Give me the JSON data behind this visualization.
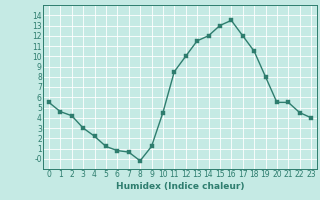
{
  "x": [
    0,
    1,
    2,
    3,
    4,
    5,
    6,
    7,
    8,
    9,
    10,
    11,
    12,
    13,
    14,
    15,
    16,
    17,
    18,
    19,
    20,
    21,
    22,
    23
  ],
  "y": [
    5.5,
    4.6,
    4.2,
    3.0,
    2.2,
    1.2,
    0.8,
    0.65,
    -0.2,
    1.2,
    4.5,
    8.5,
    10.0,
    11.5,
    12.0,
    13.0,
    13.5,
    12.0,
    10.5,
    8.0,
    5.5,
    5.5,
    4.5,
    4.0
  ],
  "line_color": "#2e7d6e",
  "marker_color": "#2e7d6e",
  "bg_color": "#c5eae4",
  "grid_color": "#ffffff",
  "xlabel": "Humidex (Indice chaleur)",
  "xlim": [
    -0.5,
    23.5
  ],
  "ylim": [
    -1,
    15
  ],
  "yticks": [
    0,
    1,
    2,
    3,
    4,
    5,
    6,
    7,
    8,
    9,
    10,
    11,
    12,
    13,
    14
  ],
  "ytick_labels": [
    "-0",
    "1",
    "2",
    "3",
    "4",
    "5",
    "6",
    "7",
    "8",
    "9",
    "10",
    "11",
    "12",
    "13",
    "14"
  ],
  "xticks": [
    0,
    1,
    2,
    3,
    4,
    5,
    6,
    7,
    8,
    9,
    10,
    11,
    12,
    13,
    14,
    15,
    16,
    17,
    18,
    19,
    20,
    21,
    22,
    23
  ],
  "tick_fontsize": 5.5,
  "xlabel_fontsize": 6.5,
  "marker_size": 2.5,
  "line_width": 1.0
}
